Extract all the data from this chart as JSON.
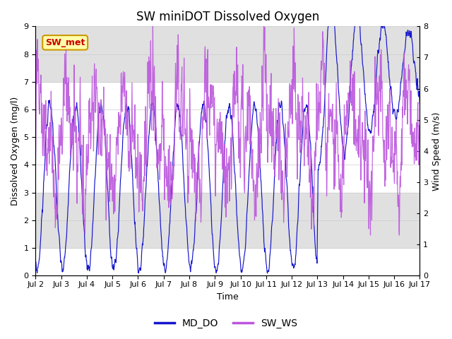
{
  "title": "SW miniDOT Dissolved Oxygen",
  "xlabel": "Time",
  "ylabel_left": "Dissolved Oxygen (mg/l)",
  "ylabel_right": "Wind Speed (m/s)",
  "ylim_left": [
    0.0,
    9.0
  ],
  "ylim_right": [
    0.0,
    8.0
  ],
  "yticks_left": [
    0.0,
    1.0,
    2.0,
    3.0,
    4.0,
    5.0,
    6.0,
    7.0,
    8.0,
    9.0
  ],
  "yticks_right": [
    0.0,
    1.0,
    2.0,
    3.0,
    4.0,
    5.0,
    6.0,
    7.0,
    8.0
  ],
  "xtick_labels": [
    "Jul 2",
    "Jul 3",
    "Jul 4",
    "Jul 5",
    "Jul 6",
    "Jul 7",
    "Jul 8",
    "Jul 9",
    "Jul 10",
    "Jul 11",
    "Jul 12",
    "Jul 13",
    "Jul 14",
    "Jul 15",
    "Jul 16",
    "Jul 17"
  ],
  "color_do": "#1515cc",
  "color_ws": "#bb55dd",
  "legend_label_do": "MD_DO",
  "legend_label_ws": "SW_WS",
  "annotation_text": "SW_met",
  "annotation_color": "#cc0000",
  "annotation_bg": "#ffffaa",
  "annotation_border": "#cc9900",
  "bg_band1": [
    7.0,
    9.0
  ],
  "bg_band2": [
    1.0,
    3.0
  ],
  "bg_color": "#e0e0e0",
  "title_fontsize": 12,
  "label_fontsize": 9,
  "tick_fontsize": 8
}
